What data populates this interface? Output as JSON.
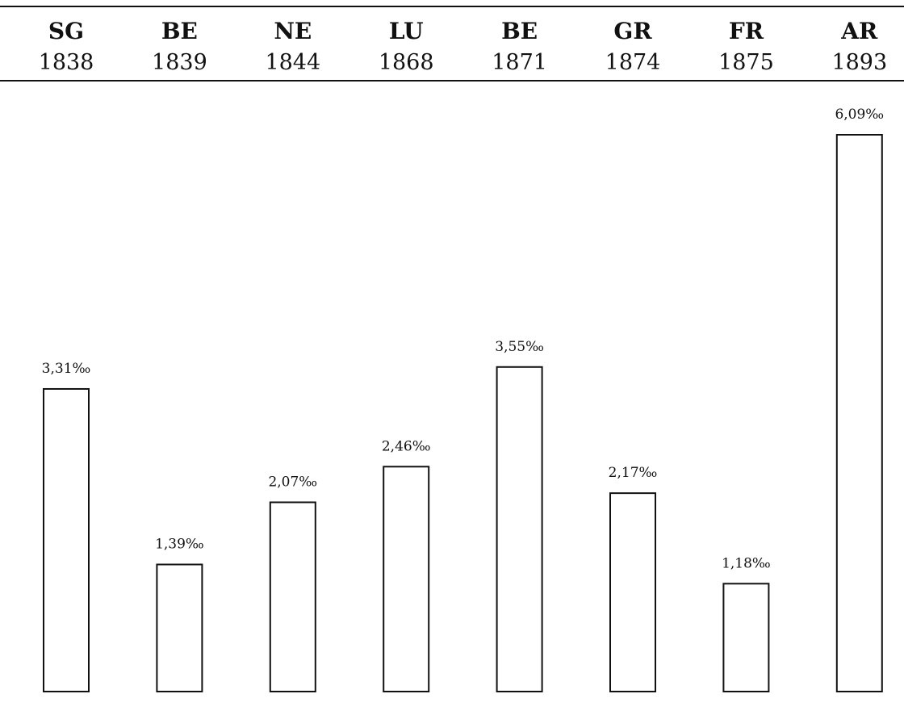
{
  "chart_data": {
    "type": "bar",
    "categories": [
      {
        "code": "SG",
        "year": "1838"
      },
      {
        "code": "BE",
        "year": "1839"
      },
      {
        "code": "NE",
        "year": "1844"
      },
      {
        "code": "LU",
        "year": "1868"
      },
      {
        "code": "BE",
        "year": "1871"
      },
      {
        "code": "GR",
        "year": "1874"
      },
      {
        "code": "FR",
        "year": "1875"
      },
      {
        "code": "AR",
        "year": "1893"
      }
    ],
    "values": [
      3.31,
      1.39,
      2.07,
      2.46,
      3.55,
      2.17,
      1.18,
      6.09
    ],
    "value_labels": [
      "3,31‰",
      "1,39‰",
      "2,07‰",
      "2,46‰",
      "3,55‰",
      "2,17‰",
      "1,18‰",
      "6,09‰"
    ],
    "title": "",
    "xlabel": "",
    "ylabel": "",
    "unit": "‰",
    "axis_position": "top",
    "grid": false,
    "legend": "none",
    "colors": {
      "bar_fill": "#ffffff",
      "bar_stroke": "#111111",
      "text": "#111111",
      "background": "#ffffff"
    }
  }
}
